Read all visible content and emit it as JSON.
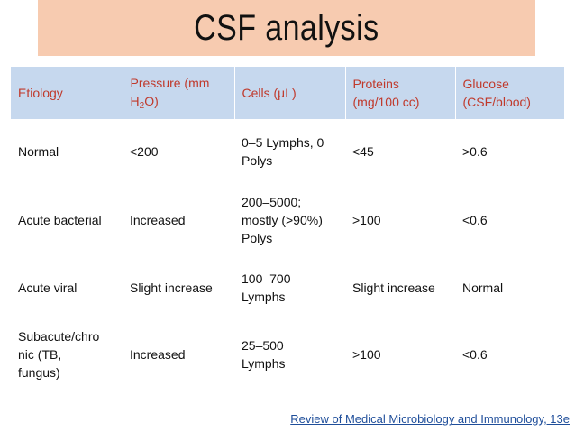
{
  "title": "CSF analysis",
  "headers": {
    "etiology": "Etiology",
    "pressure_a": "Pressure (mm",
    "pressure_b1": "H",
    "pressure_sub": "2",
    "pressure_b2": "O)",
    "cells": "Cells (µL)",
    "proteins_a": "Proteins",
    "proteins_b": "(mg/100 cc)",
    "glucose_a": "Glucose",
    "glucose_b": "(CSF/blood)"
  },
  "rows": [
    {
      "etiology": [
        "Normal"
      ],
      "pressure": "<200",
      "cells": [
        "0–5 Lymphs, 0",
        "Polys"
      ],
      "proteins": "<45",
      "glucose": ">0.6"
    },
    {
      "etiology": [
        "Acute bacterial"
      ],
      "pressure": "Increased",
      "cells": [
        "200–5000;",
        "mostly (>90%)",
        "Polys"
      ],
      "proteins": ">100",
      "glucose": "<0.6"
    },
    {
      "etiology": [
        "Acute viral"
      ],
      "pressure": "Slight increase",
      "cells": [
        "100–700",
        "Lymphs"
      ],
      "proteins": "Slight increase",
      "glucose": "Normal"
    },
    {
      "etiology": [
        "Subacute/chro",
        "nic (TB,",
        "fungus)"
      ],
      "pressure": "Increased",
      "cells": [
        "25–500",
        "Lymphs"
      ],
      "proteins": ">100",
      "glucose": "<0.6"
    }
  ],
  "citation": "Review of Medical Microbiology and Immunology, 13e"
}
